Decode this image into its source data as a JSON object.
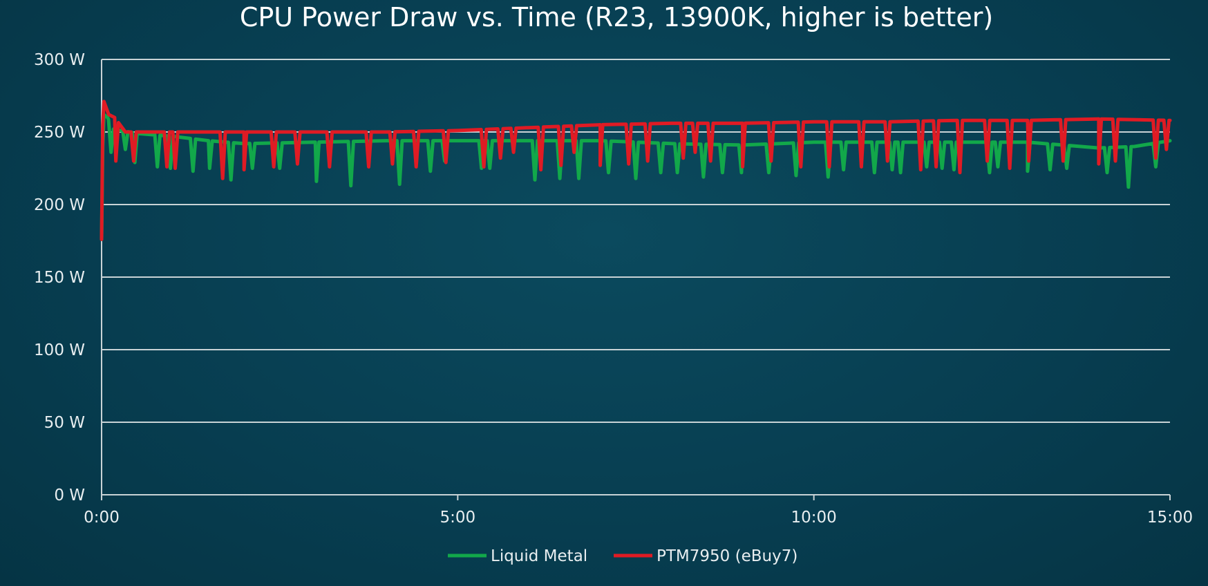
{
  "chart_data": {
    "type": "line",
    "title": "CPU Power Draw vs. Time (R23, 13900K, higher is better)",
    "xlabel": "",
    "ylabel": "",
    "ylim": [
      0,
      300
    ],
    "xlim": [
      0,
      900
    ],
    "y_ticks": [
      {
        "value": 0,
        "label": "0 W"
      },
      {
        "value": 50,
        "label": "50 W"
      },
      {
        "value": 100,
        "label": "100 W"
      },
      {
        "value": 150,
        "label": "150 W"
      },
      {
        "value": 200,
        "label": "200 W"
      },
      {
        "value": 250,
        "label": "250 W"
      },
      {
        "value": 300,
        "label": "300 W"
      }
    ],
    "x_ticks": [
      {
        "value": 0,
        "label": "0:00"
      },
      {
        "value": 300,
        "label": "5:00"
      },
      {
        "value": 600,
        "label": "10:00"
      },
      {
        "value": 900,
        "label": "15:00"
      }
    ],
    "grid": true,
    "legend_position": "bottom-center",
    "x_unit": "seconds",
    "series": [
      {
        "name": "Liquid Metal",
        "color": "#12a84a",
        "baseline": [
          [
            0,
            176
          ],
          [
            1,
            240
          ],
          [
            2,
            262
          ],
          [
            5,
            260
          ],
          [
            10,
            252
          ],
          [
            30,
            249
          ],
          [
            60,
            247
          ],
          [
            90,
            244
          ],
          [
            120,
            242
          ],
          [
            180,
            243
          ],
          [
            240,
            244
          ],
          [
            300,
            244
          ],
          [
            360,
            244
          ],
          [
            420,
            244
          ],
          [
            480,
            242
          ],
          [
            540,
            241
          ],
          [
            600,
            243
          ],
          [
            660,
            243
          ],
          [
            720,
            243
          ],
          [
            780,
            243
          ],
          [
            840,
            239
          ],
          [
            870,
            240
          ],
          [
            900,
            244
          ]
        ],
        "dips": [
          [
            8,
            236
          ],
          [
            20,
            238
          ],
          [
            28,
            229
          ],
          [
            47,
            226
          ],
          [
            58,
            225
          ],
          [
            77,
            223
          ],
          [
            91,
            225
          ],
          [
            109,
            217
          ],
          [
            127,
            225
          ],
          [
            150,
            225
          ],
          [
            181,
            216
          ],
          [
            210,
            213
          ],
          [
            251,
            214
          ],
          [
            277,
            223
          ],
          [
            289,
            230
          ],
          [
            320,
            225
          ],
          [
            327,
            225
          ],
          [
            365,
            217
          ],
          [
            386,
            218
          ],
          [
            402,
            218
          ],
          [
            427,
            222
          ],
          [
            450,
            218
          ],
          [
            471,
            222
          ],
          [
            485,
            222
          ],
          [
            507,
            219
          ],
          [
            523,
            222
          ],
          [
            539,
            222
          ],
          [
            562,
            222
          ],
          [
            585,
            220
          ],
          [
            612,
            219
          ],
          [
            625,
            224
          ],
          [
            651,
            222
          ],
          [
            666,
            224
          ],
          [
            673,
            222
          ],
          [
            695,
            226
          ],
          [
            708,
            225
          ],
          [
            718,
            224
          ],
          [
            748,
            222
          ],
          [
            755,
            226
          ],
          [
            780,
            223
          ],
          [
            799,
            224
          ],
          [
            813,
            225
          ],
          [
            847,
            222
          ],
          [
            865,
            212
          ],
          [
            888,
            226
          ]
        ]
      },
      {
        "name": "PTM7950 (eBuy7)",
        "color": "#e01b24",
        "baseline": [
          [
            0,
            176
          ],
          [
            1,
            255
          ],
          [
            2,
            271
          ],
          [
            6,
            262
          ],
          [
            11,
            260
          ],
          [
            20,
            250
          ],
          [
            60,
            250
          ],
          [
            120,
            250
          ],
          [
            180,
            250
          ],
          [
            240,
            250
          ],
          [
            300,
            251
          ],
          [
            360,
            253
          ],
          [
            420,
            255
          ],
          [
            480,
            256
          ],
          [
            540,
            256
          ],
          [
            600,
            257
          ],
          [
            660,
            257
          ],
          [
            720,
            258
          ],
          [
            780,
            258
          ],
          [
            840,
            259
          ],
          [
            900,
            258
          ]
        ],
        "dips": [
          [
            12,
            230
          ],
          [
            27,
            230
          ],
          [
            55,
            226
          ],
          [
            62,
            225
          ],
          [
            102,
            218
          ],
          [
            120,
            224
          ],
          [
            145,
            226
          ],
          [
            165,
            228
          ],
          [
            192,
            226
          ],
          [
            225,
            226
          ],
          [
            245,
            228
          ],
          [
            265,
            226
          ],
          [
            290,
            229
          ],
          [
            322,
            226
          ],
          [
            336,
            232
          ],
          [
            347,
            236
          ],
          [
            370,
            224
          ],
          [
            387,
            227
          ],
          [
            398,
            236
          ],
          [
            420,
            227
          ],
          [
            444,
            228
          ],
          [
            460,
            230
          ],
          [
            490,
            232
          ],
          [
            500,
            236
          ],
          [
            513,
            230
          ],
          [
            540,
            226
          ],
          [
            564,
            230
          ],
          [
            589,
            226
          ],
          [
            613,
            226
          ],
          [
            640,
            226
          ],
          [
            662,
            230
          ],
          [
            690,
            224
          ],
          [
            703,
            226
          ],
          [
            723,
            222
          ],
          [
            746,
            230
          ],
          [
            765,
            225
          ],
          [
            781,
            230
          ],
          [
            810,
            230
          ],
          [
            840,
            228
          ],
          [
            854,
            230
          ],
          [
            888,
            232
          ],
          [
            897,
            238
          ]
        ]
      }
    ]
  }
}
